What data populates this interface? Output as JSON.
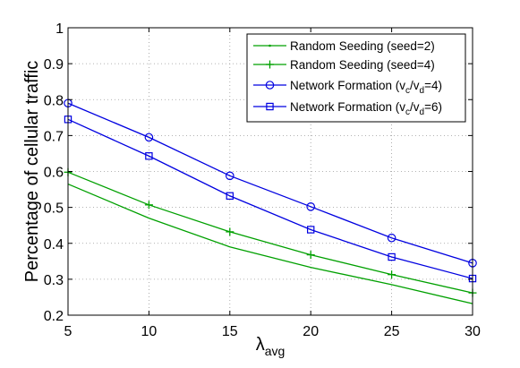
{
  "chart_data": {
    "type": "line",
    "title": "",
    "xlabel": {
      "symbol": "λ",
      "subscript": "avg"
    },
    "ylabel": "Percentage of cellular traffic",
    "xlim": [
      5,
      30
    ],
    "ylim": [
      0.2,
      1
    ],
    "x_ticks": [
      5,
      10,
      15,
      20,
      25,
      30
    ],
    "x_tick_labels": [
      "5",
      "10",
      "15",
      "20",
      "25",
      "30"
    ],
    "y_ticks": [
      0.2,
      0.3,
      0.4,
      0.5,
      0.6,
      0.7,
      0.8,
      0.9,
      1
    ],
    "y_tick_labels": [
      "0.2",
      "0.3",
      "0.4",
      "0.5",
      "0.6",
      "0.7",
      "0.8",
      "0.9",
      "1"
    ],
    "grid": true,
    "legend_position": "top-right",
    "x": [
      5,
      10,
      15,
      20,
      25,
      30
    ],
    "series": [
      {
        "name": "Random Seeding (seed=2)",
        "legend_parts": [
          {
            "text": "Random Seeding (seed=2)",
            "sub": false
          }
        ],
        "color": "#00a000",
        "marker": "point",
        "values": [
          0.565,
          0.47,
          0.39,
          0.333,
          0.285,
          0.232
        ]
      },
      {
        "name": "Random Seeding (seed=4)",
        "legend_parts": [
          {
            "text": "Random Seeding (seed=4)",
            "sub": false
          }
        ],
        "color": "#00a000",
        "marker": "plus",
        "values": [
          0.598,
          0.507,
          0.432,
          0.368,
          0.313,
          0.262
        ]
      },
      {
        "name": "Network Formation (vc/vd=4)",
        "legend_parts": [
          {
            "text": "Network Formation (v",
            "sub": false
          },
          {
            "text": "c",
            "sub": true
          },
          {
            "text": "/v",
            "sub": false
          },
          {
            "text": "d",
            "sub": true
          },
          {
            "text": "=4)",
            "sub": false
          }
        ],
        "color": "#0000e0",
        "marker": "circle",
        "values": [
          0.79,
          0.695,
          0.588,
          0.502,
          0.415,
          0.345
        ]
      },
      {
        "name": "Network Formation (vc/vd=6)",
        "legend_parts": [
          {
            "text": "Network Formation (v",
            "sub": false
          },
          {
            "text": "c",
            "sub": true
          },
          {
            "text": "/v",
            "sub": false
          },
          {
            "text": "d",
            "sub": true
          },
          {
            "text": "=6)",
            "sub": false
          }
        ],
        "color": "#0000e0",
        "marker": "square",
        "values": [
          0.745,
          0.643,
          0.532,
          0.438,
          0.362,
          0.302
        ]
      }
    ]
  }
}
